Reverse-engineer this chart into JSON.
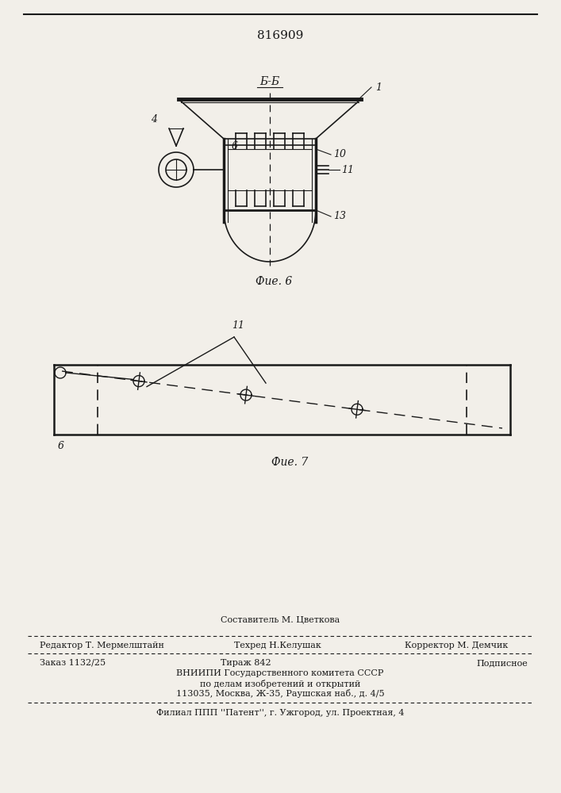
{
  "patent_number": "816909",
  "fig6_label": "Фие. 6",
  "fig7_label": "Фие. 7",
  "section_label": "Б-Б",
  "bg_color": "#f2efe9",
  "line_color": "#1a1a1a",
  "label_1": "1",
  "label_4": "4",
  "label_6": "6",
  "label_10": "10",
  "label_11": "11",
  "label_13": "13",
  "footer_line1": "Составитель М. Цветкова",
  "footer_line2_left": "Редактор Т. Мермелштайн",
  "footer_line2_mid": "Техред Н.Келушак",
  "footer_line2_right": "Корректор М. Демчик",
  "footer_line3_left": "Заказ 1132/25",
  "footer_line3_mid": "Тираж 842",
  "footer_line3_right": "Подписное",
  "footer_line4": "ВНИИПИ Государственного комитета СССР",
  "footer_line5": "по делам изобретений и открытий",
  "footer_line6": "113035, Москва, Ж-35, Раушская наб., д. 4/5",
  "footer_line7": "Филиал ППП ''\\u041fатент'', г. Ужгород, ул. Проектная, 4"
}
